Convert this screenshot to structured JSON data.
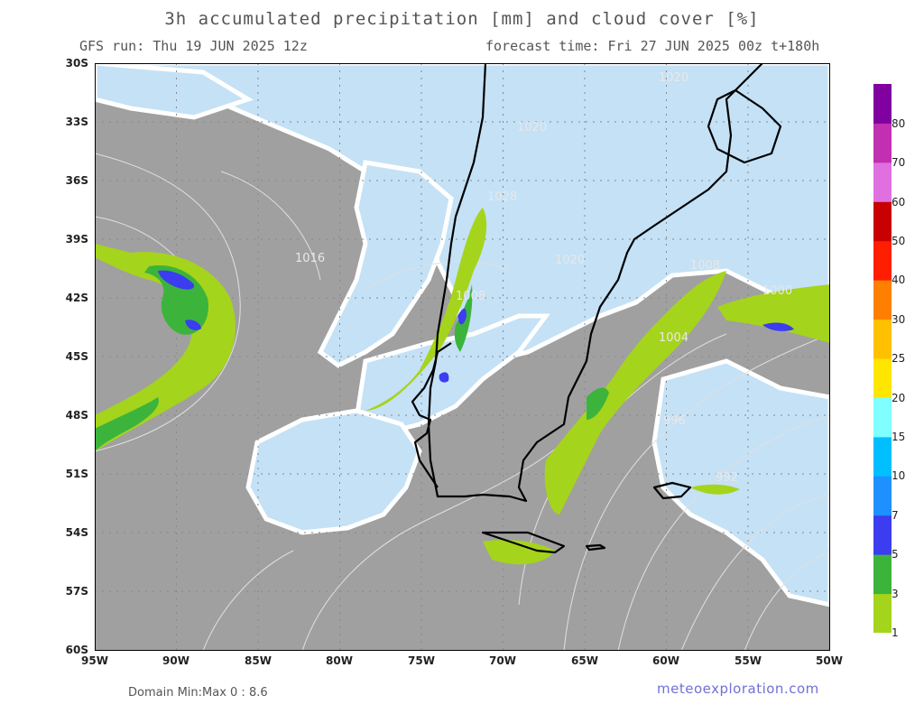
{
  "header": {
    "title": "3h accumulated precipitation [mm] and cloud cover [%]",
    "run": "GFS run: Thu 19 JUN 2025 12z",
    "forecast": "forecast time: Fri 27 JUN 2025 00z  t+180h"
  },
  "footer": {
    "minmax": "Domain Min:Max 0 : 8.6",
    "brand": "meteoexploration.com"
  },
  "axes": {
    "lat": [
      "30S",
      "33S",
      "36S",
      "39S",
      "42S",
      "45S",
      "48S",
      "51S",
      "54S",
      "57S",
      "60S"
    ],
    "lon": [
      "95W",
      "90W",
      "85W",
      "80W",
      "75W",
      "70W",
      "65W",
      "60W",
      "55W",
      "50W"
    ]
  },
  "isobars": [
    "1020",
    "1020",
    "1028",
    "1016",
    "1020",
    "1008",
    "1008",
    "1000",
    "1004",
    "996",
    "992"
  ],
  "colorbar": {
    "labels": [
      "1",
      "3",
      "5",
      "7",
      "10",
      "15",
      "20",
      "25",
      "30",
      "40",
      "50",
      "60",
      "70",
      "80"
    ],
    "colors": [
      "#a5d41c",
      "#3cb43c",
      "#3c3cf0",
      "#1e90ff",
      "#00bfff",
      "#7fffff",
      "#ffe600",
      "#ffc000",
      "#ff8000",
      "#ff1e00",
      "#c80000",
      "#e070e0",
      "#c030b0",
      "#8000a0"
    ]
  },
  "map_colors": {
    "clear": "#a0a0a0",
    "cloud": "#c4e1f6",
    "cloud_edge": "#ffffff",
    "coast": "#000000",
    "grid": "#888888",
    "isobar": "#e0e0e0"
  }
}
